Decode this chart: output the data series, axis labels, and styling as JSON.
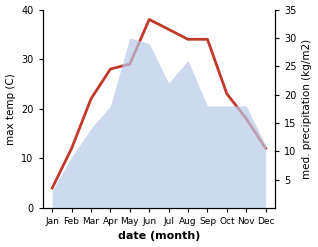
{
  "months": [
    "Jan",
    "Feb",
    "Mar",
    "Apr",
    "May",
    "Jun",
    "Jul",
    "Aug",
    "Sep",
    "Oct",
    "Nov",
    "Dec"
  ],
  "temperature": [
    4,
    12,
    22,
    28,
    29,
    38,
    36,
    34,
    34,
    23,
    18,
    12
  ],
  "precipitation": [
    3,
    9,
    14,
    18,
    30,
    29,
    22,
    26,
    18,
    18,
    18,
    11
  ],
  "temp_color": "#c0392b",
  "precip_color": "#b8c9e8",
  "left_ylim": [
    0,
    40
  ],
  "right_ylim": [
    0,
    35
  ],
  "left_yticks": [
    0,
    10,
    20,
    30,
    40
  ],
  "right_yticks": [
    5,
    10,
    15,
    20,
    25,
    30,
    35
  ],
  "xlabel": "date (month)",
  "ylabel_left": "max temp (C)",
  "ylabel_right": "med. precipitation (kg/m2)",
  "temp_linewidth": 2.0
}
